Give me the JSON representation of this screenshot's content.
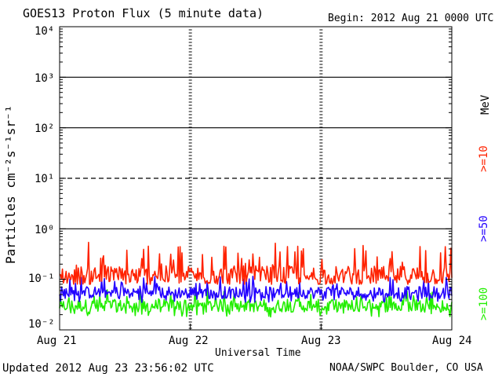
{
  "header": {
    "title": "GOES13 Proton Flux (5 minute data)",
    "begin": "Begin: 2012 Aug 21 0000 UTC"
  },
  "footer": {
    "updated": "Updated 2012 Aug 23 23:56:02 UTC",
    "credit": "NOAA/SWPC Boulder, CO USA"
  },
  "legend_colors": {
    "ge10": "#ff2200",
    "ge50": "#2200ff",
    "ge100": "#22ee00"
  },
  "chart_data": {
    "type": "line",
    "title": "GOES13 Proton Flux (5 minute data)",
    "xlabel": "Universal Time",
    "ylabel": "Particles cm⁻²s⁻¹sr⁻¹",
    "y_scale": "log",
    "ylim": [
      0.01,
      10000
    ],
    "y_ticks": [
      "10⁻²",
      "10⁻¹",
      "10⁰",
      "10¹",
      "10²",
      "10³",
      "10⁴"
    ],
    "x_ticks": [
      "Aug 21",
      "Aug 22",
      "Aug 23",
      "Aug 24"
    ],
    "units_label": "MeV",
    "threshold_lines": [
      {
        "value": 10,
        "style": "dashed"
      },
      {
        "value": 100,
        "style": "solid"
      },
      {
        "value": 1000,
        "style": "solid"
      },
      {
        "value": 1,
        "style": "solid"
      }
    ],
    "series": [
      {
        "name": ">=10",
        "color": "#ff2200",
        "typical": 0.12,
        "range": [
          0.08,
          0.55
        ]
      },
      {
        "name": ">=50",
        "color": "#2200ff",
        "typical": 0.055,
        "range": [
          0.035,
          0.12
        ]
      },
      {
        "name": ">=100",
        "color": "#22ee00",
        "typical": 0.03,
        "range": [
          0.018,
          0.065
        ]
      }
    ]
  }
}
